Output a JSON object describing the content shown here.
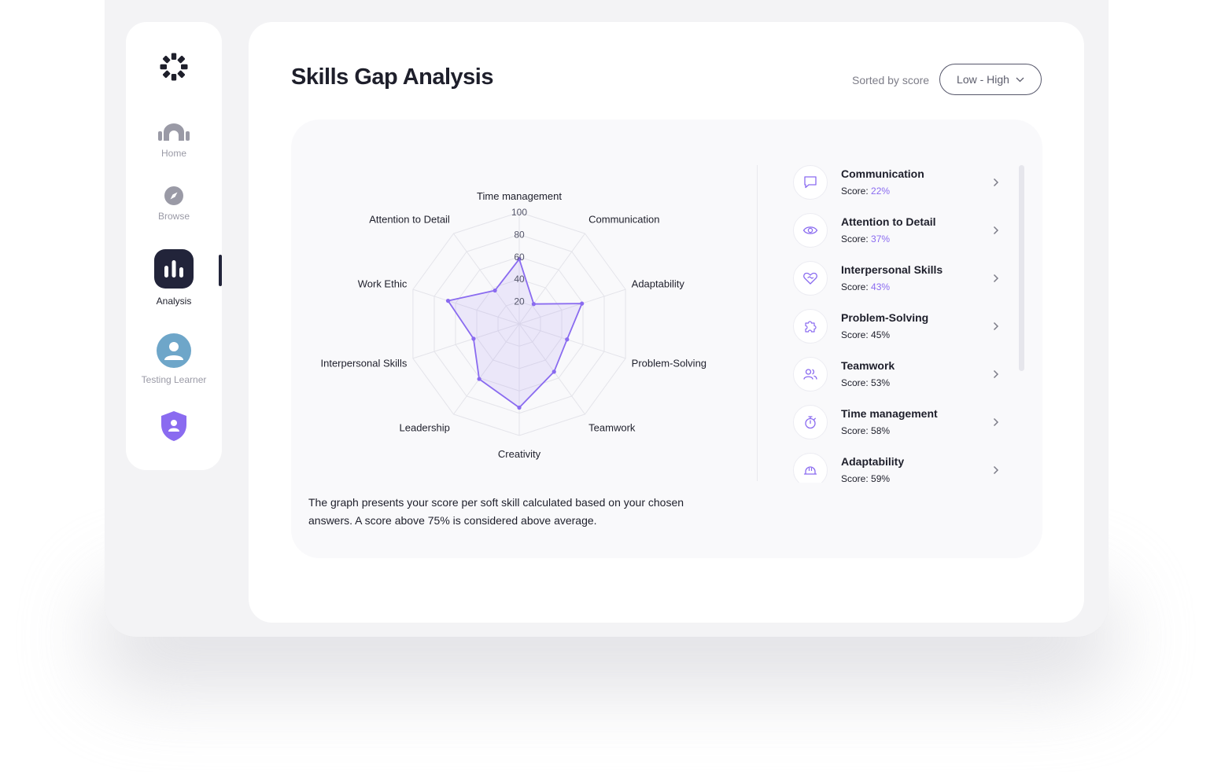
{
  "sidebar": {
    "items": [
      {
        "label": "Home",
        "icon": "home-icon"
      },
      {
        "label": "Browse",
        "icon": "compass-icon"
      },
      {
        "label": "Analysis",
        "icon": "bar-chart-icon",
        "active": true
      },
      {
        "label": "Testing Learner",
        "icon": "avatar"
      }
    ],
    "logo": "sunburst-logo",
    "extra_icon": "shield-user-icon"
  },
  "header": {
    "title": "Skills Gap Analysis",
    "sort_label": "Sorted by score",
    "sort_value": "Low - High"
  },
  "chart_data": {
    "type": "radar",
    "axes": [
      "Time management",
      "Communication",
      "Adaptability",
      "Problem-Solving",
      "Teamwork",
      "Creativity",
      "Leadership",
      "Interpersonal Skills",
      "Work Ethic",
      "Attention to Detail"
    ],
    "values": [
      58,
      22,
      59,
      45,
      53,
      75,
      61,
      43,
      67,
      37
    ],
    "ticks": [
      20,
      40,
      60,
      80,
      100
    ],
    "range": [
      0,
      100
    ],
    "color": "#8a6bf0"
  },
  "caption": "The graph presents your score per soft skill calculated based on your chosen answers. A score above 75% is considered above average.",
  "skills": {
    "score_prefix": "Score: ",
    "items": [
      {
        "name": "Communication",
        "score": "22%",
        "highlight": true,
        "icon": "chat-icon"
      },
      {
        "name": "Attention to Detail",
        "score": "37%",
        "highlight": true,
        "icon": "eye-icon"
      },
      {
        "name": "Interpersonal Skills",
        "score": "43%",
        "highlight": true,
        "icon": "heart-handshake-icon"
      },
      {
        "name": "Problem-Solving",
        "score": "45%",
        "highlight": false,
        "icon": "puzzle-icon"
      },
      {
        "name": "Teamwork",
        "score": "53%",
        "highlight": false,
        "icon": "users-icon"
      },
      {
        "name": "Time management",
        "score": "58%",
        "highlight": false,
        "icon": "stopwatch-icon"
      },
      {
        "name": "Adaptability",
        "score": "59%",
        "highlight": false,
        "icon": "helmet-icon"
      }
    ]
  },
  "colors": {
    "accent": "#8a6bf0",
    "dark": "#22243a",
    "muted": "#9a9aa6"
  }
}
